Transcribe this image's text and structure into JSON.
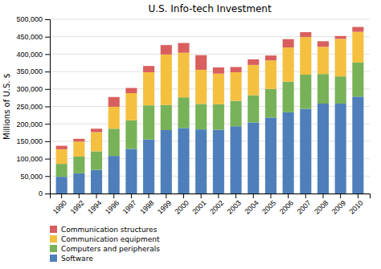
{
  "chart_data": {
    "type": "bar",
    "stacked": true,
    "title": "U.S. Info-tech Investment",
    "ylabel": "Millions of U.S. $",
    "categories": [
      "1990",
      "1992",
      "1994",
      "1996",
      "1997",
      "1998",
      "1999",
      "2000",
      "2001",
      "2002",
      "2003",
      "2004",
      "2005",
      "2006",
      "2007",
      "2008",
      "2009",
      "2010"
    ],
    "series": [
      {
        "name": "Software",
        "color": "#4e7fba",
        "values": [
          48000,
          58000,
          68000,
          108000,
          128000,
          155000,
          182000,
          188000,
          184000,
          183000,
          193000,
          204000,
          218000,
          233000,
          243000,
          258000,
          258000,
          278000
        ]
      },
      {
        "name": "Computers and peripherals",
        "color": "#78b258",
        "values": [
          37000,
          48000,
          53000,
          78000,
          82000,
          98000,
          72000,
          88000,
          73000,
          73000,
          73000,
          78000,
          82000,
          88000,
          98000,
          85000,
          78000,
          98000
        ]
      },
      {
        "name": "Communication equipment",
        "color": "#f5c040",
        "values": [
          42000,
          43000,
          55000,
          63000,
          78000,
          95000,
          145000,
          128000,
          98000,
          88000,
          82000,
          87000,
          82000,
          98000,
          108000,
          78000,
          108000,
          88000
        ]
      },
      {
        "name": "Communication structures",
        "color": "#d95f5f",
        "values": [
          10000,
          8000,
          10000,
          28000,
          15000,
          18000,
          27000,
          28000,
          42000,
          18000,
          15000,
          16000,
          14000,
          24000,
          14000,
          16000,
          8000,
          14000
        ]
      }
    ],
    "ylim": [
      0,
      500000
    ],
    "yticks": [
      0,
      {
        "value": 50000,
        "label": "50,000"
      },
      {
        "value": 100000,
        "label": "100,000"
      },
      {
        "value": 150000,
        "label": "150,000"
      },
      {
        "value": 200000,
        "label": "200,000"
      },
      {
        "value": 250000,
        "label": "250,000"
      },
      {
        "value": 300000,
        "label": "300,000"
      },
      {
        "value": 350000,
        "label": "350,000"
      },
      {
        "value": 400000,
        "label": "400,000"
      },
      {
        "value": 450000,
        "label": "450,000"
      },
      {
        "value": 500000,
        "label": "500,000"
      }
    ],
    "grid": true,
    "legend": "bottom"
  }
}
